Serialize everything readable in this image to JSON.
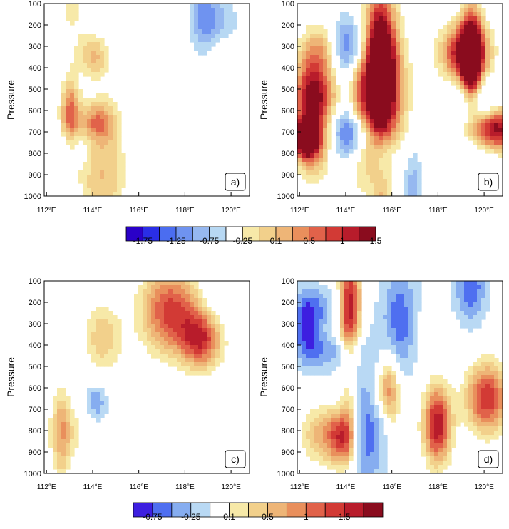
{
  "figure": {
    "panels": [
      {
        "id": "a",
        "label": "a)",
        "palette": "top",
        "seed": 11,
        "shading": "light"
      },
      {
        "id": "b",
        "label": "b)",
        "palette": "top",
        "seed": 23,
        "shading": "strong"
      },
      {
        "id": "c",
        "label": "c)",
        "palette": "bottom",
        "seed": 37,
        "shading": "light"
      },
      {
        "id": "d",
        "label": "d)",
        "palette": "bottom",
        "seed": 53,
        "shading": "strong"
      }
    ]
  },
  "chart_data": {
    "type": "heatmap",
    "ylabel": "Pressure",
    "y_ticks": [
      "100",
      "200",
      "300",
      "400",
      "500",
      "600",
      "700",
      "800",
      "900",
      "1000"
    ],
    "x_ticks": [
      "112°E",
      "114°E",
      "116°E",
      "118°E",
      "120°E"
    ],
    "xlim": [
      111.9,
      120.8
    ],
    "ylim": [
      1000,
      100
    ],
    "colorbars": {
      "top": {
        "colors": [
          "#2a00c8",
          "#2a2ee6",
          "#4b6df0",
          "#6f93f0",
          "#96b8f0",
          "#b7d8f3",
          "#ffffff",
          "#f7e9a8",
          "#f2d08b",
          "#eeb577",
          "#e98f5c",
          "#e1624a",
          "#d23a35",
          "#b81c2b",
          "#8a0c1e"
        ],
        "labels": [
          "-1.75",
          "-1.25",
          "-0.75",
          "-0.25",
          "0.1",
          "0.5",
          "1",
          "1.5"
        ]
      },
      "bottom": {
        "colors": [
          "#3d1fe0",
          "#4f6ff0",
          "#86adf0",
          "#b9d9f4",
          "#ffffff",
          "#f7e9a8",
          "#f2d08b",
          "#eeb577",
          "#e98f5c",
          "#e1624a",
          "#d23a35",
          "#b81c2b",
          "#8a0c1e"
        ],
        "labels": [
          "-0.75",
          "-0.25",
          "0.1",
          "0.5",
          "1",
          "1.5"
        ]
      }
    }
  }
}
